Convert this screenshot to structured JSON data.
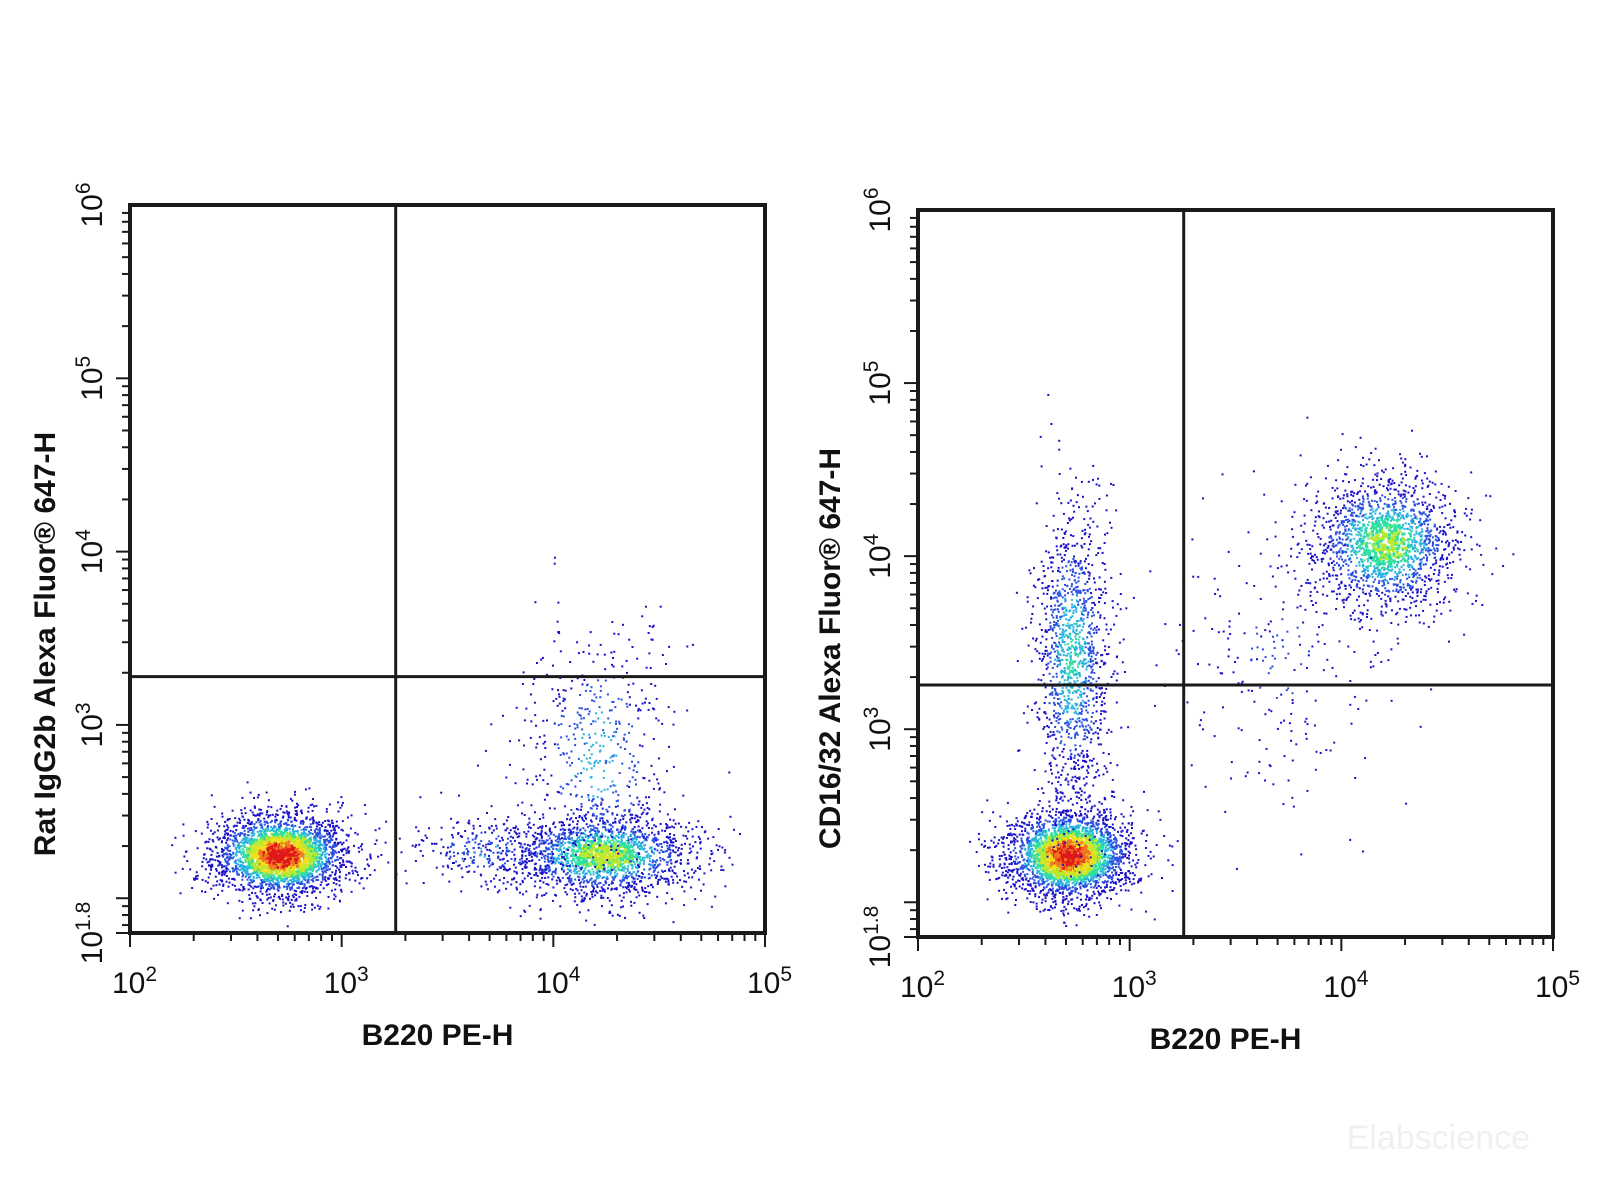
{
  "watermark": "Elabscience",
  "colors": {
    "frame": "#1a1a1a",
    "density_scale": [
      "#1a10c8",
      "#2a4ee0",
      "#28b0e0",
      "#2fe0a0",
      "#b8e830",
      "#f0e020",
      "#f07820",
      "#e01818"
    ]
  },
  "chart_data": [
    {
      "type": "scatter",
      "id": "left",
      "xlabel": "B220 PE-H",
      "ylabel": "Rat IgG2b Alexa Fluor® 647-H",
      "x_scale": "log",
      "y_scale": "log",
      "xlim": [
        100,
        100000
      ],
      "ylim": [
        63,
        1000000
      ],
      "x_ticks": [
        {
          "base": "10",
          "exp": "2"
        },
        {
          "base": "10",
          "exp": "3"
        },
        {
          "base": "10",
          "exp": "4"
        },
        {
          "base": "10",
          "exp": "5"
        }
      ],
      "y_ticks": [
        {
          "base": "10",
          "exp": "1.8"
        },
        {
          "base": "10",
          "exp": "3"
        },
        {
          "base": "10",
          "exp": "4"
        },
        {
          "base": "10",
          "exp": "5"
        },
        {
          "base": "10",
          "exp": "6"
        }
      ],
      "quadrant_gate": {
        "x": 1800,
        "y": 1900
      },
      "populations": [
        {
          "n": 2600,
          "center": [
            510,
            180
          ],
          "spread": [
            0.16,
            0.12
          ],
          "peak": 1.0
        },
        {
          "n": 1700,
          "center": [
            17000,
            180
          ],
          "spread": [
            0.22,
            0.12
          ],
          "peak": 0.6
        },
        {
          "n": 550,
          "center": [
            16000,
            650
          ],
          "spread": [
            0.18,
            0.42
          ],
          "peak": 0.3
        },
        {
          "n": 260,
          "center": [
            5000,
            190
          ],
          "spread": [
            0.2,
            0.1
          ],
          "peak": 0.25
        }
      ]
    },
    {
      "type": "scatter",
      "id": "right",
      "xlabel": "B220 PE-H",
      "ylabel": "CD16/32 Alexa Fluor® 647-H",
      "x_scale": "log",
      "y_scale": "log",
      "xlim": [
        100,
        100000
      ],
      "ylim": [
        63,
        1000000
      ],
      "x_ticks": [
        {
          "base": "10",
          "exp": "2"
        },
        {
          "base": "10",
          "exp": "3"
        },
        {
          "base": "10",
          "exp": "4"
        },
        {
          "base": "10",
          "exp": "5"
        }
      ],
      "y_ticks": [
        {
          "base": "10",
          "exp": "1.8"
        },
        {
          "base": "10",
          "exp": "3"
        },
        {
          "base": "10",
          "exp": "4"
        },
        {
          "base": "10",
          "exp": "5"
        },
        {
          "base": "10",
          "exp": "6"
        }
      ],
      "quadrant_gate": {
        "x": 1800,
        "y": 1800
      },
      "populations": [
        {
          "n": 2600,
          "center": [
            510,
            190
          ],
          "spread": [
            0.15,
            0.13
          ],
          "peak": 1.0
        },
        {
          "n": 1300,
          "center": [
            530,
            2600
          ],
          "spread": [
            0.09,
            0.45
          ],
          "peak": 0.4
        },
        {
          "n": 1700,
          "center": [
            16000,
            12000
          ],
          "spread": [
            0.18,
            0.2
          ],
          "peak": 0.55
        },
        {
          "n": 220,
          "center": [
            5000,
            2500
          ],
          "spread": [
            0.28,
            0.45
          ],
          "peak": 0.15
        }
      ]
    }
  ]
}
